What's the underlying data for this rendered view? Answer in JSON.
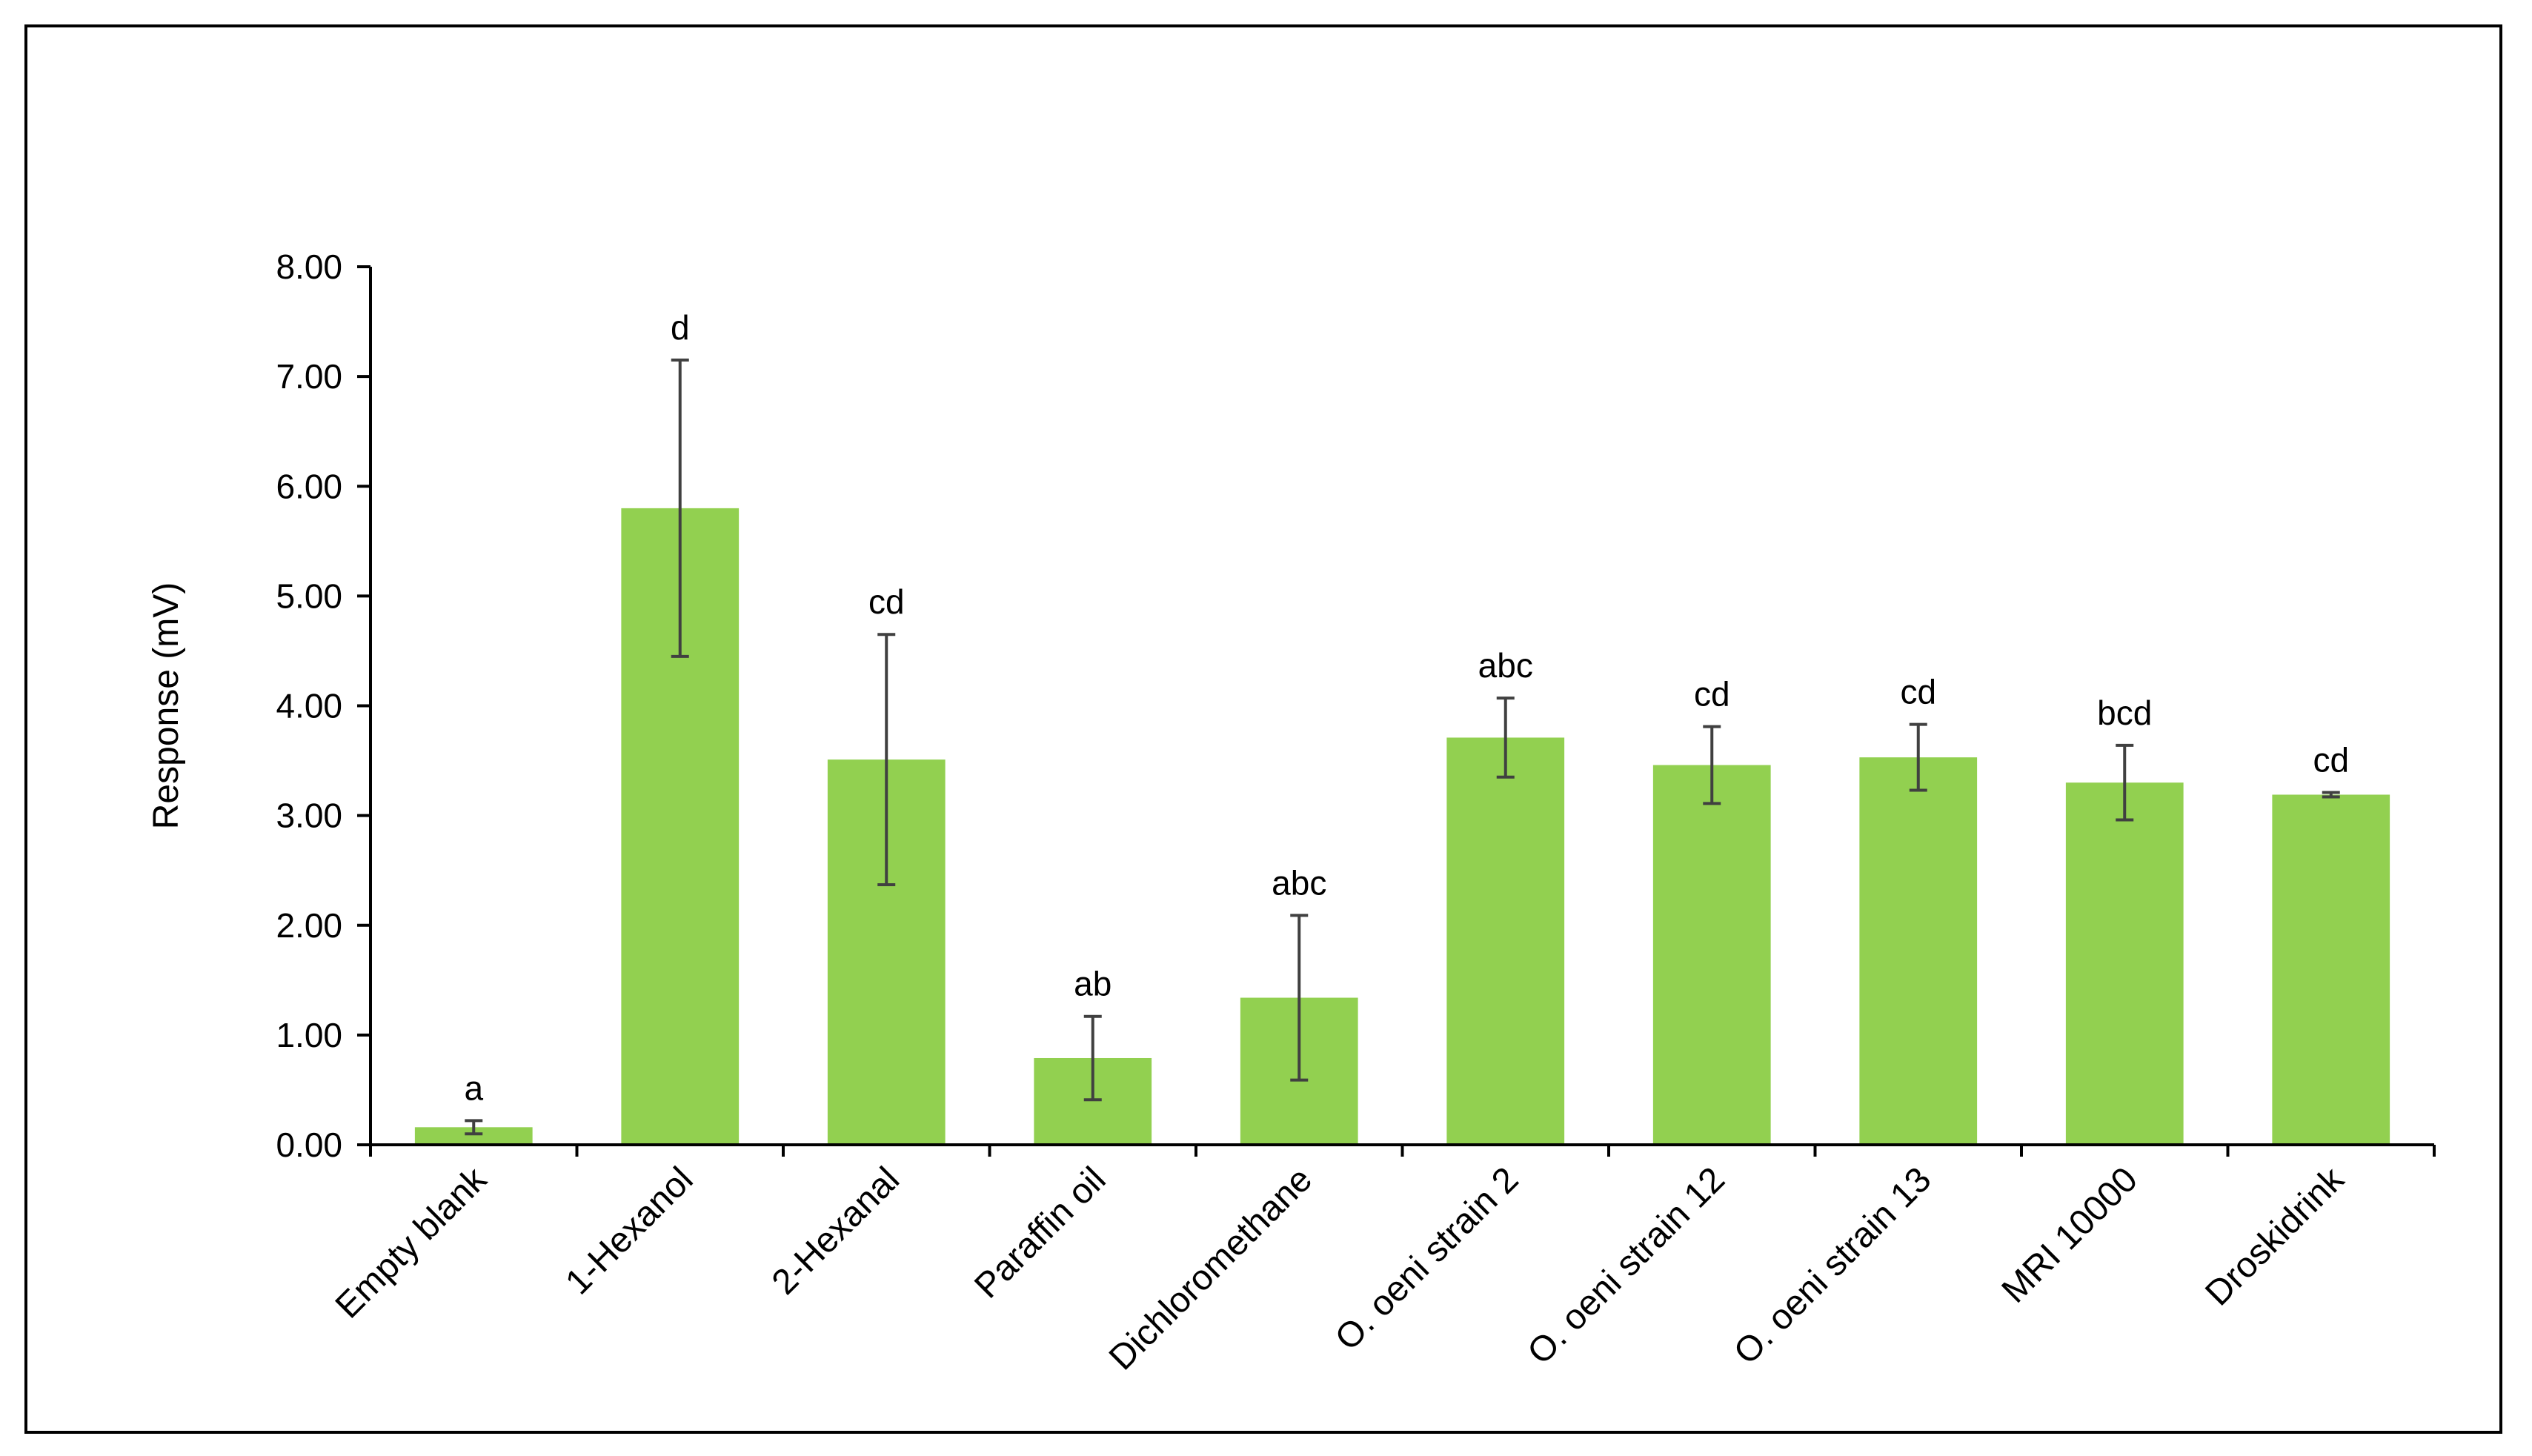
{
  "chart_data": {
    "type": "bar",
    "title": "",
    "xlabel": "",
    "ylabel": "Response (mV)",
    "ylim": [
      0,
      8
    ],
    "yticks": [
      "0.00",
      "1.00",
      "2.00",
      "3.00",
      "4.00",
      "5.00",
      "6.00",
      "7.00",
      "8.00"
    ],
    "grid": false,
    "legend": "none",
    "bar_color": "#92d050",
    "error_bar_color": "#404040",
    "categories": [
      "Empty blank",
      "1-Hexanol",
      "2-Hexanal",
      "Paraffin oil",
      "Dichloromethane",
      "O. oeni strain 2",
      "O. oeni strain 12",
      "O. oeni strain 13",
      "MRI 10000",
      "Droskidrink"
    ],
    "values": [
      0.16,
      5.8,
      3.51,
      0.79,
      1.34,
      3.71,
      3.46,
      3.53,
      3.3,
      3.19
    ],
    "errors": [
      0.06,
      1.35,
      1.14,
      0.38,
      0.75,
      0.36,
      0.35,
      0.3,
      0.34,
      0.02
    ],
    "significance_letters": [
      "a",
      "d",
      "cd",
      "ab",
      "abc",
      "abc",
      "cd",
      "cd",
      "bcd",
      "cd"
    ]
  }
}
